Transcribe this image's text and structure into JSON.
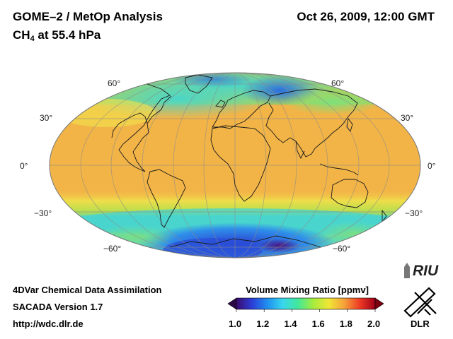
{
  "header": {
    "title": "GOME–2 / MetOp Analysis",
    "species": "CH",
    "species_sub": "4",
    "level": " at 55.4 hPa",
    "datetime": "Oct 26, 2009, 12:00 GMT"
  },
  "map": {
    "projection": "Mollweide",
    "lat_labels_left": [
      "60°",
      "30°",
      "0°",
      "−30°",
      "−60°"
    ],
    "lat_labels_right": [
      "60°",
      "30°",
      "0°",
      "−30°",
      "−60°"
    ]
  },
  "colorbar": {
    "title": "Volume Mixing Ratio [ppmv]",
    "ticks": [
      "1.0",
      "1.2",
      "1.4",
      "1.6",
      "1.8",
      "2.0"
    ],
    "colors": [
      "#3a0a6e",
      "#2c3dd6",
      "#1f8fef",
      "#38d6ee",
      "#43e89a",
      "#a8ec3c",
      "#f1e636",
      "#f5a13a",
      "#ee3a24",
      "#a1001a"
    ]
  },
  "footer": {
    "line1": "4DVar Chemical Data Assimilation",
    "line2": "SACADA Version 1.7",
    "line3": "http://wdc.dlr.de"
  },
  "logos": {
    "riu": "RIU",
    "dlr": "DLR"
  }
}
